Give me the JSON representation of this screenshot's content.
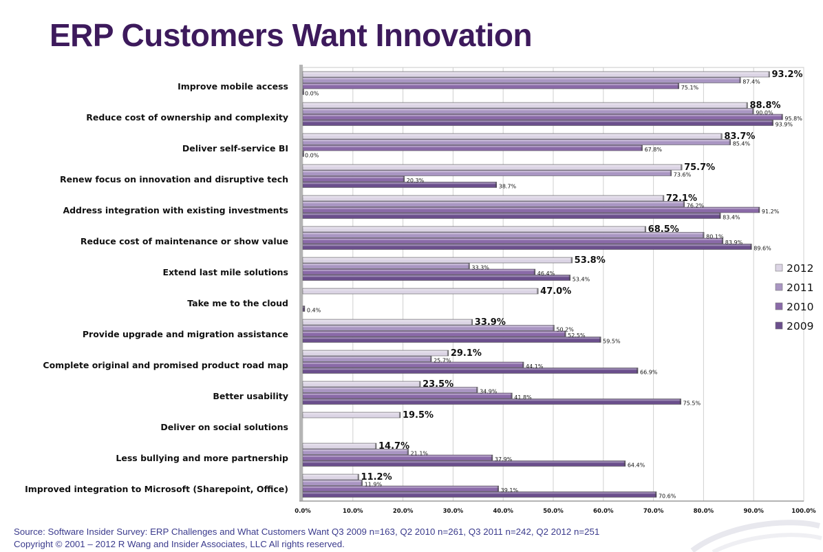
{
  "title": "ERP Customers Want Innovation",
  "footer": {
    "source": "Source: Software Insider Survey: ERP Challenges and What Customers Want Q3 2009 n=163, Q2 2010 n=261, Q3 2011 n=242, Q2 2012 n=251",
    "copyright": "Copyright © 2001 – 2012 R Wang and Insider Associates, LLC All rights reserved."
  },
  "colors": {
    "2012": "#dcd5e5",
    "2011": "#a996c2",
    "2010": "#8a6aa8",
    "2009": "#6b4f8c",
    "title": "#3d1a5c",
    "footer": "#3a3a8c"
  },
  "chart_data": {
    "type": "bar",
    "orientation": "horizontal",
    "xlim": [
      0,
      100
    ],
    "x_ticks": [
      "0.0%",
      "10.0%",
      "20.0%",
      "30.0%",
      "40.0%",
      "50.0%",
      "60.0%",
      "70.0%",
      "80.0%",
      "90.0%",
      "100.0%"
    ],
    "grid": true,
    "legend": "right",
    "categories": [
      "Improve mobile access",
      "Reduce cost of ownership and complexity",
      "Deliver self-service BI",
      "Renew focus on innovation and disruptive tech",
      "Address integration with existing investments",
      "Reduce cost of maintenance or show value",
      "Extend last mile solutions",
      "Take me to the cloud",
      "Provide upgrade and migration assistance",
      "Complete original and promised product road map",
      "Better usability",
      "Deliver on social solutions",
      "Less bullying and more partnership",
      "Improved integration to Microsoft (Sharepoint, Office)"
    ],
    "series": [
      {
        "name": "2012",
        "values": [
          93.2,
          88.8,
          83.7,
          75.7,
          72.1,
          68.5,
          53.8,
          47.0,
          33.9,
          29.1,
          23.5,
          19.5,
          14.7,
          11.2
        ],
        "labels": [
          "93.2%",
          "88.8%",
          "83.7%",
          "75.7%",
          "72.1%",
          "68.5%",
          "53.8%",
          "47.0%",
          "33.9%",
          "29.1%",
          "23.5%",
          "19.5%",
          "14.7%",
          "11.2%"
        ]
      },
      {
        "name": "2011",
        "values": [
          87.4,
          90.0,
          85.4,
          73.6,
          76.2,
          80.1,
          33.3,
          null,
          50.2,
          25.7,
          34.9,
          null,
          21.1,
          11.9
        ],
        "labels": [
          "87.4%",
          "90.0%",
          "85.4%",
          "73.6%",
          "76.2%",
          "80.1%",
          "33.3%",
          null,
          "50.2%",
          "25.7%",
          "34.9%",
          null,
          "21.1%",
          "11.9%"
        ]
      },
      {
        "name": "2010",
        "values": [
          75.1,
          95.8,
          67.8,
          20.3,
          91.2,
          83.9,
          46.4,
          null,
          52.5,
          44.1,
          41.8,
          null,
          37.9,
          39.1
        ],
        "labels": [
          "75.1%",
          "95.8%",
          "67.8%",
          "20.3%",
          "91.2%",
          "83.9%",
          "46.4%",
          null,
          "52.5%",
          "44.1%",
          "41.8%",
          null,
          "37.9%",
          "39.1%"
        ]
      },
      {
        "name": "2009",
        "values": [
          0.0,
          93.9,
          0.0,
          38.7,
          83.4,
          89.6,
          53.4,
          0.4,
          59.5,
          66.9,
          75.5,
          null,
          64.4,
          70.6
        ],
        "labels": [
          "0.0%",
          "93.9%",
          "0.0%",
          "38.7%",
          "83.4%",
          "89.6%",
          "53.4%",
          "0.4%",
          "59.5%",
          "66.9%",
          "75.5%",
          null,
          "64.4%",
          "70.6%"
        ]
      }
    ]
  }
}
